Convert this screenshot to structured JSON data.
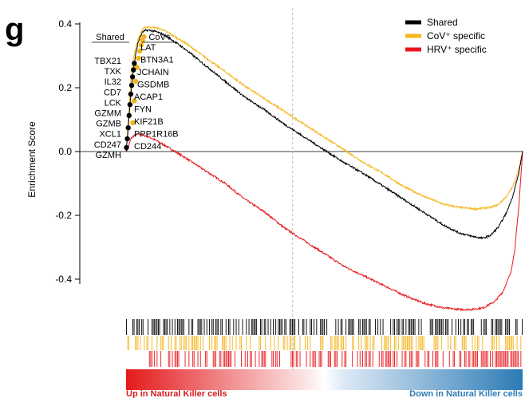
{
  "chart_data": {
    "type": "line",
    "panel_label": "g",
    "ylabel": "Enrichment Score",
    "ylim": [
      -0.5,
      0.42
    ],
    "yticks": [
      0.4,
      0.2,
      0.0,
      -0.2,
      -0.4
    ],
    "ytick_labels": [
      "0.4",
      "0.2",
      "0.0",
      "-0.2",
      "-0.4"
    ],
    "x_range": [
      0,
      1
    ],
    "legend_position": "top-right",
    "series": [
      {
        "name": "Shared",
        "color": "#000000",
        "points": [
          [
            0,
            0.0
          ],
          [
            0.004,
            0.05
          ],
          [
            0.008,
            0.12
          ],
          [
            0.012,
            0.18
          ],
          [
            0.016,
            0.23
          ],
          [
            0.02,
            0.27
          ],
          [
            0.025,
            0.31
          ],
          [
            0.03,
            0.34
          ],
          [
            0.036,
            0.36
          ],
          [
            0.042,
            0.375
          ],
          [
            0.05,
            0.38
          ],
          [
            0.06,
            0.38
          ],
          [
            0.075,
            0.376
          ],
          [
            0.09,
            0.369
          ],
          [
            0.11,
            0.355
          ],
          [
            0.15,
            0.32
          ],
          [
            0.2,
            0.27
          ],
          [
            0.25,
            0.22
          ],
          [
            0.3,
            0.17
          ],
          [
            0.35,
            0.13
          ],
          [
            0.4,
            0.085
          ],
          [
            0.45,
            0.045
          ],
          [
            0.5,
            0.005
          ],
          [
            0.55,
            -0.035
          ],
          [
            0.6,
            -0.07
          ],
          [
            0.65,
            -0.11
          ],
          [
            0.7,
            -0.15
          ],
          [
            0.75,
            -0.19
          ],
          [
            0.8,
            -0.23
          ],
          [
            0.84,
            -0.255
          ],
          [
            0.87,
            -0.265
          ],
          [
            0.9,
            -0.272
          ],
          [
            0.92,
            -0.262
          ],
          [
            0.94,
            -0.235
          ],
          [
            0.96,
            -0.19
          ],
          [
            0.975,
            -0.14
          ],
          [
            0.99,
            -0.07
          ],
          [
            1.0,
            0.0
          ]
        ]
      },
      {
        "name": "CoV⁺ specific",
        "color": "#F5B51B",
        "points": [
          [
            0,
            0.0
          ],
          [
            0.004,
            0.07
          ],
          [
            0.008,
            0.15
          ],
          [
            0.012,
            0.22
          ],
          [
            0.016,
            0.27
          ],
          [
            0.02,
            0.3
          ],
          [
            0.025,
            0.33
          ],
          [
            0.03,
            0.35
          ],
          [
            0.036,
            0.37
          ],
          [
            0.042,
            0.385
          ],
          [
            0.05,
            0.39
          ],
          [
            0.06,
            0.39
          ],
          [
            0.075,
            0.388
          ],
          [
            0.09,
            0.383
          ],
          [
            0.11,
            0.37
          ],
          [
            0.15,
            0.34
          ],
          [
            0.2,
            0.295
          ],
          [
            0.25,
            0.25
          ],
          [
            0.3,
            0.205
          ],
          [
            0.35,
            0.165
          ],
          [
            0.4,
            0.125
          ],
          [
            0.45,
            0.085
          ],
          [
            0.5,
            0.045
          ],
          [
            0.55,
            0.005
          ],
          [
            0.6,
            -0.035
          ],
          [
            0.65,
            -0.07
          ],
          [
            0.7,
            -0.11
          ],
          [
            0.75,
            -0.14
          ],
          [
            0.8,
            -0.165
          ],
          [
            0.84,
            -0.175
          ],
          [
            0.88,
            -0.18
          ],
          [
            0.92,
            -0.175
          ],
          [
            0.94,
            -0.165
          ],
          [
            0.96,
            -0.14
          ],
          [
            0.975,
            -0.11
          ],
          [
            0.99,
            -0.06
          ],
          [
            1.0,
            0.0
          ]
        ]
      },
      {
        "name": "HRV⁺ specific",
        "color": "#E8161B",
        "points": [
          [
            0,
            0.0
          ],
          [
            0.005,
            0.01
          ],
          [
            0.012,
            0.04
          ],
          [
            0.02,
            0.05
          ],
          [
            0.03,
            0.055
          ],
          [
            0.045,
            0.05
          ],
          [
            0.06,
            0.045
          ],
          [
            0.075,
            0.035
          ],
          [
            0.09,
            0.025
          ],
          [
            0.11,
            0.01
          ],
          [
            0.15,
            -0.02
          ],
          [
            0.2,
            -0.06
          ],
          [
            0.25,
            -0.1
          ],
          [
            0.3,
            -0.15
          ],
          [
            0.35,
            -0.19
          ],
          [
            0.4,
            -0.24
          ],
          [
            0.45,
            -0.28
          ],
          [
            0.5,
            -0.32
          ],
          [
            0.55,
            -0.36
          ],
          [
            0.6,
            -0.39
          ],
          [
            0.65,
            -0.42
          ],
          [
            0.7,
            -0.45
          ],
          [
            0.75,
            -0.475
          ],
          [
            0.8,
            -0.49
          ],
          [
            0.84,
            -0.495
          ],
          [
            0.87,
            -0.495
          ],
          [
            0.9,
            -0.49
          ],
          [
            0.93,
            -0.47
          ],
          [
            0.95,
            -0.44
          ],
          [
            0.97,
            -0.38
          ],
          [
            0.98,
            -0.31
          ],
          [
            0.99,
            -0.18
          ],
          [
            1.0,
            0.0
          ]
        ]
      }
    ],
    "leading_edge_shared": [
      "TBX21",
      "TXK",
      "IL32",
      "CD7",
      "LCK",
      "GZMM",
      "GZMB",
      "XCL1",
      "CD247",
      "GZMH"
    ],
    "leading_edge_cov": [
      "LAT",
      "BTN3A1",
      "JCHAIN",
      "GSDMB",
      "ACAP1",
      "FYN",
      "KIF21B",
      "PPP1R16B",
      "CD244"
    ],
    "gene_header_shared": "Shared",
    "gene_header_cov": "CoV⁺",
    "zero_cross_marker_x": 0.42,
    "x_left_label": "Up in Natural Killer cells",
    "x_right_label": "Down in Natural Killer cells",
    "left_label_color": "#D7191C",
    "right_label_color": "#2C7BB6"
  }
}
